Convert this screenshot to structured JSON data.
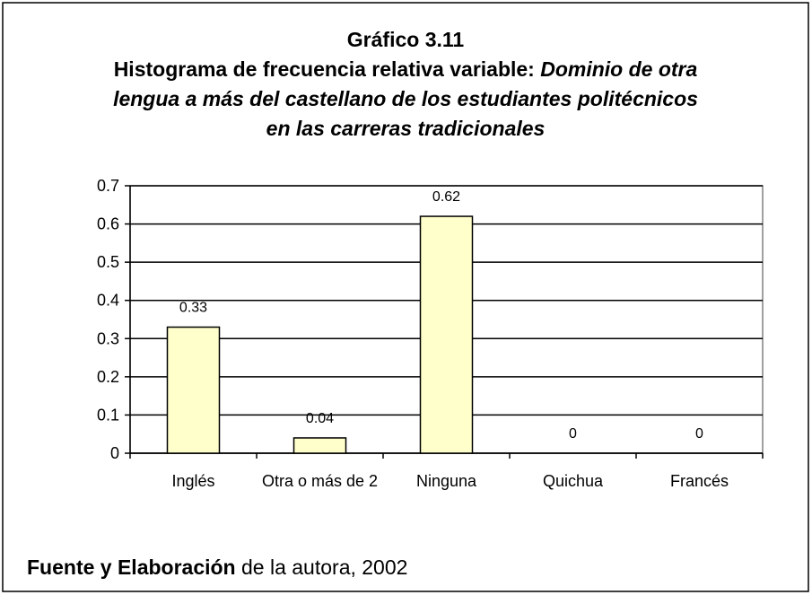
{
  "chart_data": {
    "type": "bar",
    "title": "Gráfico 3.11",
    "subtitle": {
      "lead": "Histograma de frecuencia relativa variable:",
      "emphasis": [
        "Dominio de otra",
        "lengua a más del castellano de los estudiantes politécnicos",
        "en las carreras tradicionales"
      ]
    },
    "categories": [
      "Inglés",
      "Otra o más de 2",
      "Ninguna",
      "Quichua",
      "Francés"
    ],
    "values": [
      0.33,
      0.04,
      0.62,
      0,
      0
    ],
    "color": "#ffffcc",
    "ylim": [
      0,
      0.7
    ],
    "yticks": [
      0,
      0.1,
      0.2,
      0.3,
      0.4,
      0.5,
      0.6,
      0.7
    ],
    "grid": true,
    "source": {
      "label": "Fuente y Elaboración",
      "text": "de la autora, 2002"
    }
  }
}
